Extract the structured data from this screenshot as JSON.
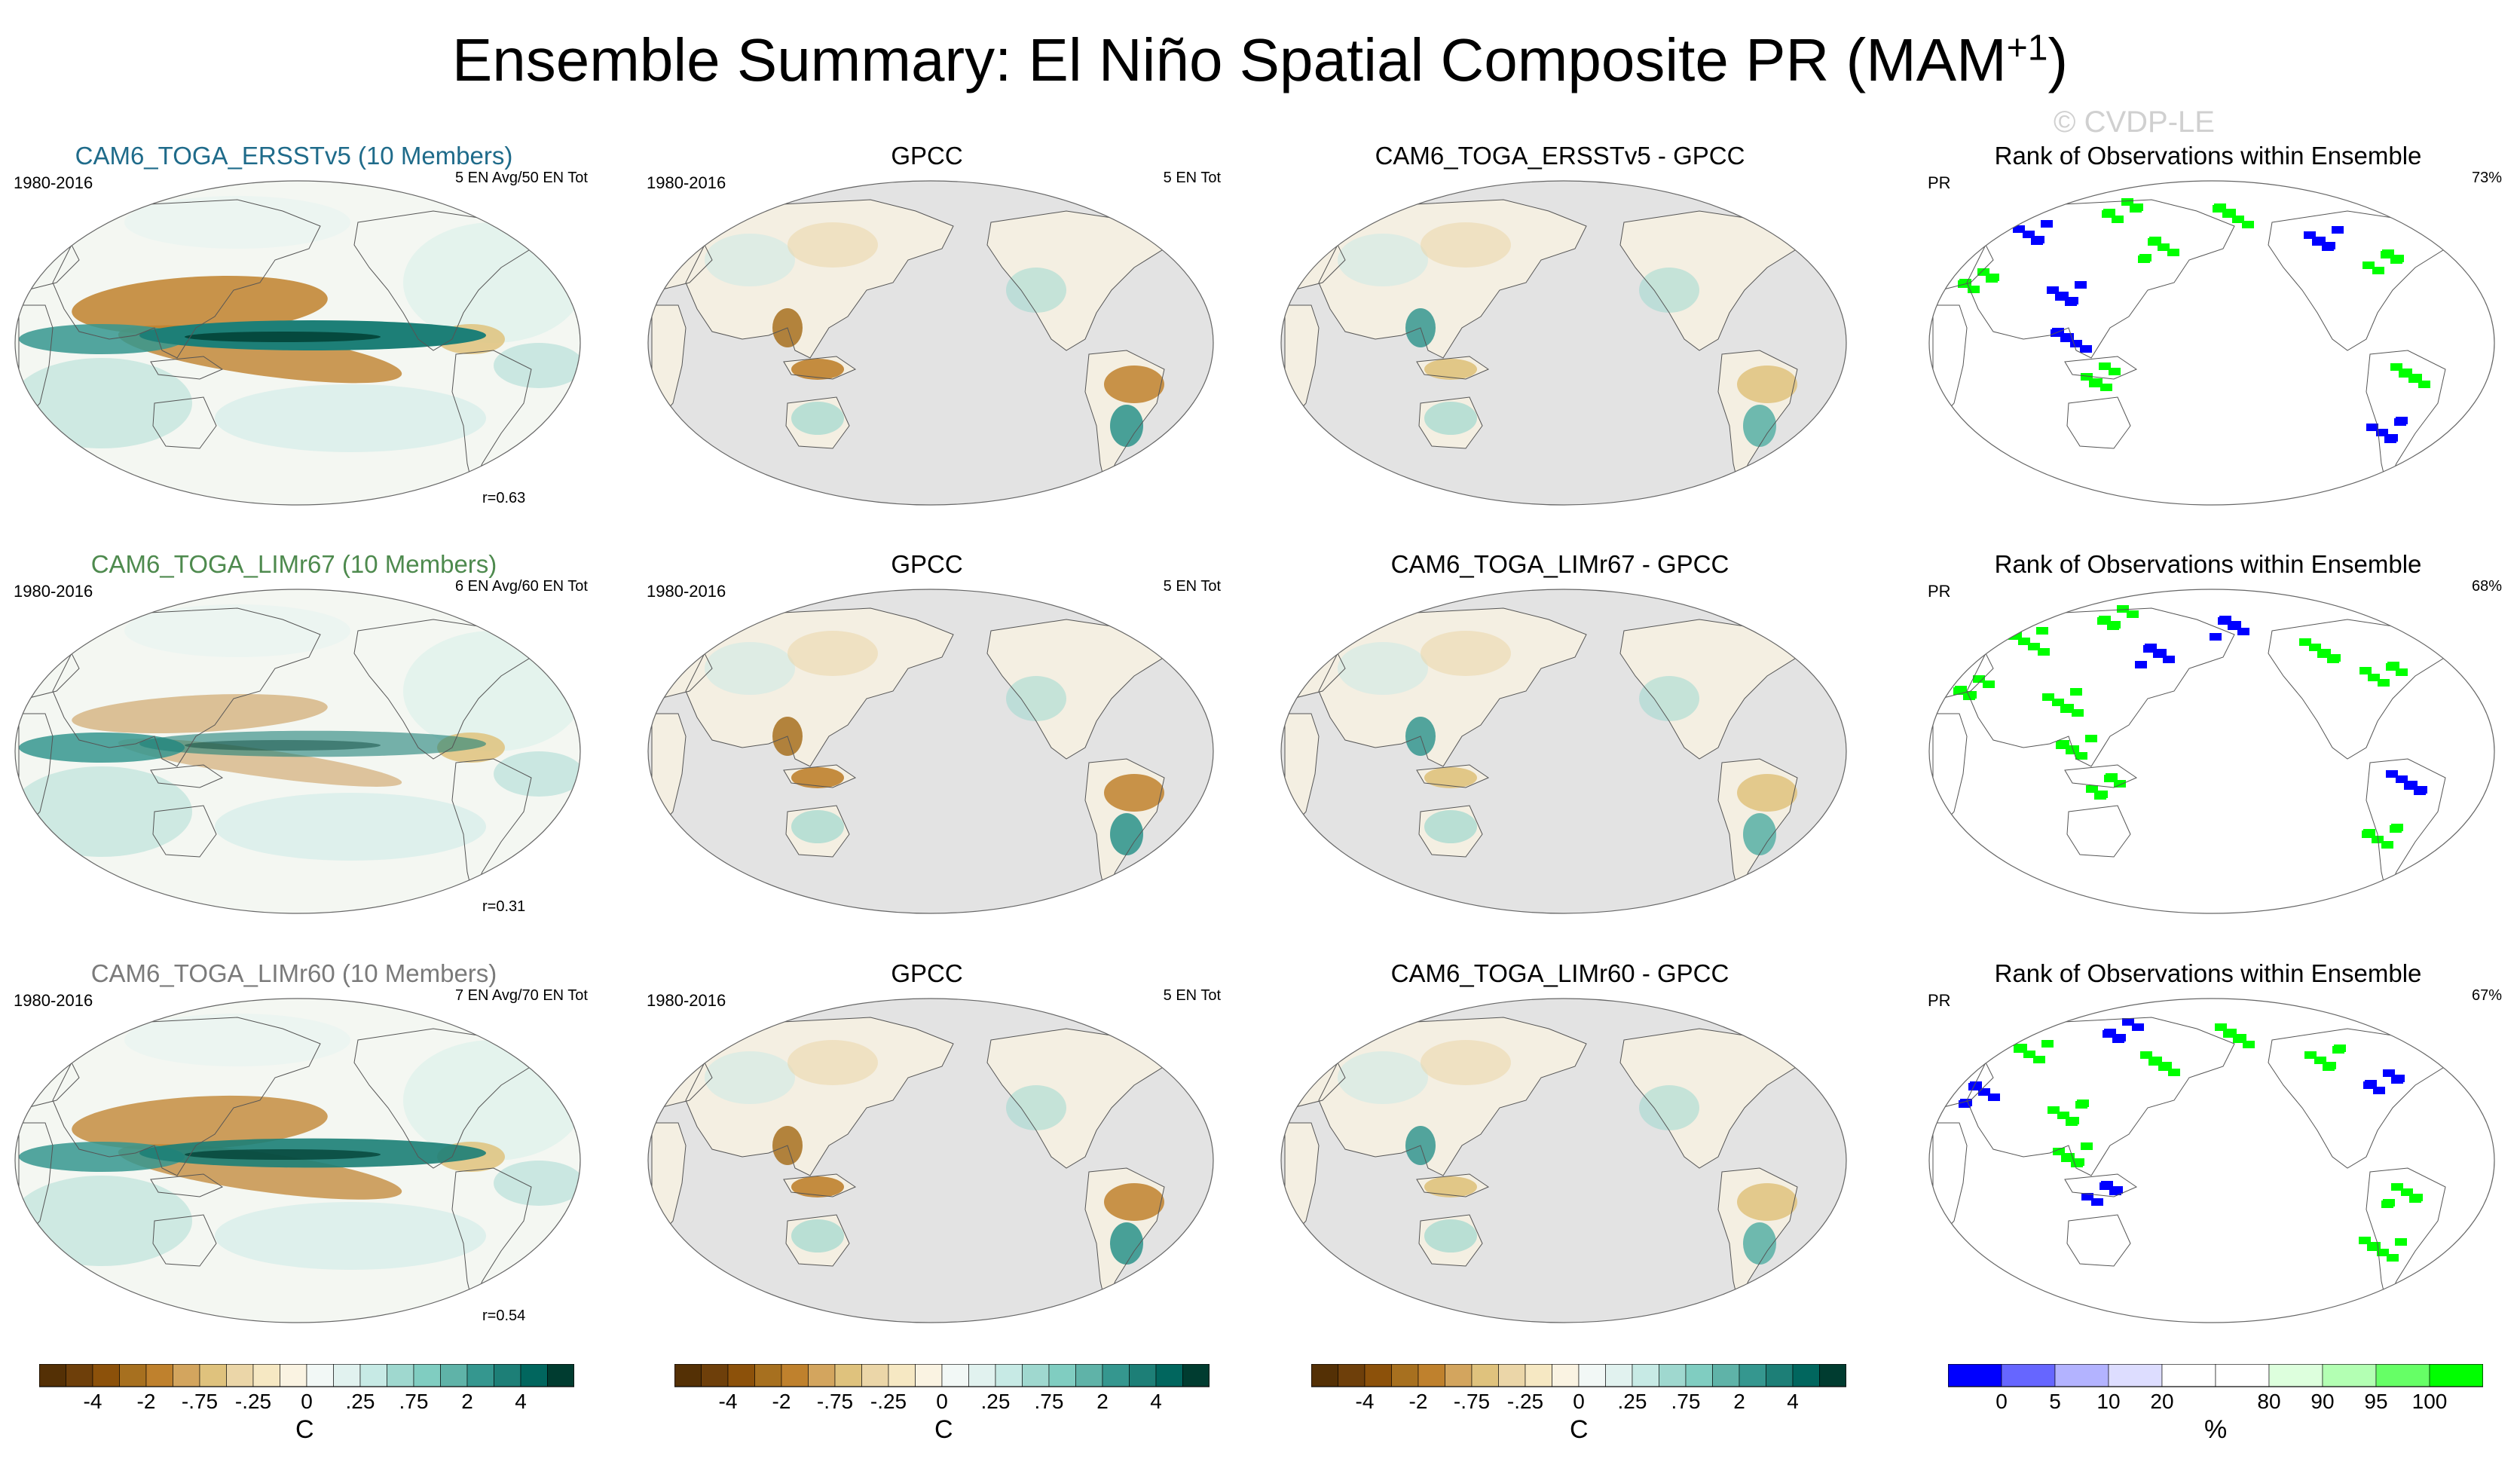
{
  "title": {
    "main": "Ensemble Summary: El Niño Spatial Composite PR (MAM",
    "superscript": "+1",
    "close": ")"
  },
  "watermark": "© CVDP-LE",
  "colors": {
    "anomaly_scale": [
      "#543005",
      "#6e3f0a",
      "#8c510a",
      "#a7701f",
      "#bf812d",
      "#d3a55e",
      "#dfc27d",
      "#ebd6a8",
      "#f6e8c3",
      "#faf3e2",
      "#f2f8f6",
      "#e1f2ef",
      "#c7eae5",
      "#9fd8cf",
      "#80cdc1",
      "#5fb3a8",
      "#35978f",
      "#1d7f77",
      "#01665e",
      "#003c30"
    ],
    "rank_scale": [
      "#0000ff",
      "#6666ff",
      "#b3b3ff",
      "#ddddff",
      "#ffffff",
      "#ffffff",
      "#ddffdd",
      "#b3ffb3",
      "#66ff66",
      "#00ff00"
    ],
    "ocean": "#e3e3e3",
    "outline": "#555555"
  },
  "rows": [
    {
      "model": {
        "title": "CAM6_TOGA_ERSSTv5 (10 Members)",
        "title_color": "#1f6b8a",
        "period": "1980-2016",
        "count": "5 EN Avg/50 EN Tot",
        "corr": "r=0.63"
      },
      "obs": {
        "title": "GPCC",
        "period": "1980-2016",
        "count": "5 EN Tot"
      },
      "diff": {
        "title": "CAM6_TOGA_ERSSTv5 - GPCC"
      },
      "rank": {
        "title": "Rank of Observations within Ensemble",
        "var": "PR",
        "pct": "73%"
      }
    },
    {
      "model": {
        "title": "CAM6_TOGA_LIMr67 (10 Members)",
        "title_color": "#4e8a4e",
        "period": "1980-2016",
        "count": "6 EN Avg/60 EN Tot",
        "corr": "r=0.31"
      },
      "obs": {
        "title": "GPCC",
        "period": "1980-2016",
        "count": "5 EN Tot"
      },
      "diff": {
        "title": "CAM6_TOGA_LIMr67 - GPCC"
      },
      "rank": {
        "title": "Rank of Observations within Ensemble",
        "var": "PR",
        "pct": "68%"
      }
    },
    {
      "model": {
        "title": "CAM6_TOGA_LIMr60 (10 Members)",
        "title_color": "#7a7a7a",
        "period": "1980-2016",
        "count": "7 EN Avg/70 EN Tot",
        "corr": "r=0.54"
      },
      "obs": {
        "title": "GPCC",
        "period": "1980-2016",
        "count": "5 EN Tot"
      },
      "diff": {
        "title": "CAM6_TOGA_LIMr60 - GPCC"
      },
      "rank": {
        "title": "Rank of Observations within Ensemble",
        "var": "PR",
        "pct": "67%"
      }
    }
  ],
  "colorbars": {
    "anomaly": {
      "unit": "C",
      "ticks": [
        "-4",
        "-2",
        "-.75",
        "-.25",
        "0",
        ".25",
        ".75",
        "2",
        "4"
      ]
    },
    "rank": {
      "unit": "%",
      "ticks": [
        "0",
        "5",
        "10",
        "20",
        "80",
        "90",
        "95",
        "100"
      ]
    }
  },
  "chart_data": [
    {
      "type": "heatmap",
      "title": "CAM6_TOGA_ERSSTv5 (10 Members)",
      "projection": "Robinson (Pacific-centered)",
      "period": "1980-2016",
      "unit": "C",
      "levels": [
        "-4",
        "-2",
        "-.75",
        "-.25",
        "0",
        ".25",
        ".75",
        "2",
        "4"
      ],
      "pattern": "wet central/eastern equatorial Pacific, dry off-equatorial western Pacific",
      "corr": "r=0.63"
    },
    {
      "type": "heatmap",
      "title": "GPCC",
      "period": "1980-2016",
      "unit": "C",
      "coverage": "land only",
      "pattern": "dry Maritime Continent and northern South America; wet southeastern South America"
    },
    {
      "type": "heatmap",
      "title": "CAM6_TOGA_ERSSTv5 - GPCC",
      "unit": "C",
      "coverage": "land only"
    },
    {
      "type": "heatmap",
      "title": "Rank of Observations within Ensemble",
      "var": "PR",
      "pct": "73%",
      "unit": "%",
      "levels": [
        "0",
        "5",
        "10",
        "20",
        "80",
        "90",
        "95",
        "100"
      ]
    },
    {
      "type": "heatmap",
      "title": "CAM6_TOGA_LIMr67 (10 Members)",
      "period": "1980-2016",
      "unit": "C",
      "pattern": "weaker equatorial Pacific anomalies",
      "corr": "r=0.31"
    },
    {
      "type": "heatmap",
      "title": "GPCC",
      "period": "1980-2016",
      "unit": "C",
      "coverage": "land only"
    },
    {
      "type": "heatmap",
      "title": "CAM6_TOGA_LIMr67 - GPCC",
      "unit": "C",
      "coverage": "land only"
    },
    {
      "type": "heatmap",
      "title": "Rank of Observations within Ensemble",
      "var": "PR",
      "pct": "68%",
      "unit": "%"
    },
    {
      "type": "heatmap",
      "title": "CAM6_TOGA_LIMr60 (10 Members)",
      "period": "1980-2016",
      "unit": "C",
      "pattern": "strong wet equatorial Pacific, dry off-equatorial bands",
      "corr": "r=0.54"
    },
    {
      "type": "heatmap",
      "title": "GPCC",
      "period": "1980-2016",
      "unit": "C",
      "coverage": "land only"
    },
    {
      "type": "heatmap",
      "title": "CAM6_TOGA_LIMr60 - GPCC",
      "unit": "C",
      "coverage": "land only"
    },
    {
      "type": "heatmap",
      "title": "Rank of Observations within Ensemble",
      "var": "PR",
      "pct": "67%",
      "unit": "%"
    }
  ]
}
